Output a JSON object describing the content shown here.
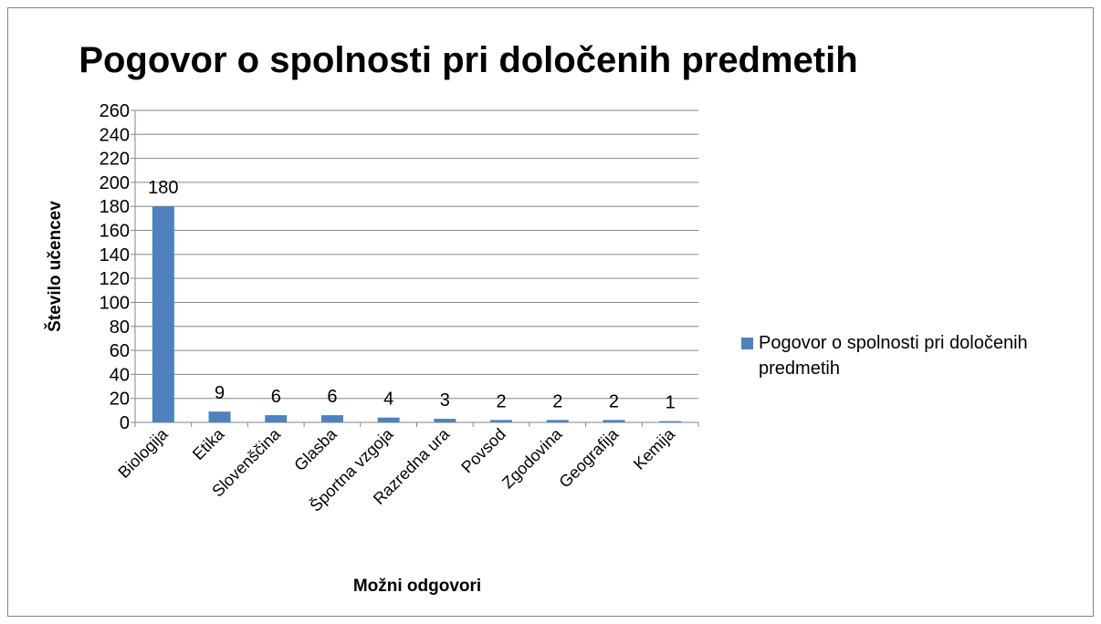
{
  "chart_data": {
    "type": "bar",
    "title": "Pogovor o spolnosti pri določenih predmetih",
    "x_label": "Možni odgovori",
    "y_label": "Število učencev",
    "categories": [
      "Biologija",
      "Etika",
      "Slovenščina",
      "Glasba",
      "Športna vzgoja",
      "Razredna ura",
      "Povsod",
      "Zgodovina",
      "Geografija",
      "Kemija"
    ],
    "series": [
      {
        "name": "Pogovor o spolnosti pri določenih predmetih",
        "color": "#4f81bd",
        "values": [
          180,
          9,
          6,
          6,
          4,
          3,
          2,
          2,
          2,
          1
        ]
      }
    ],
    "ylim": [
      0,
      260
    ],
    "yticks": [
      0,
      20,
      40,
      60,
      80,
      100,
      120,
      140,
      160,
      180,
      200,
      220,
      240,
      260
    ],
    "grid": true,
    "legend": "right"
  }
}
